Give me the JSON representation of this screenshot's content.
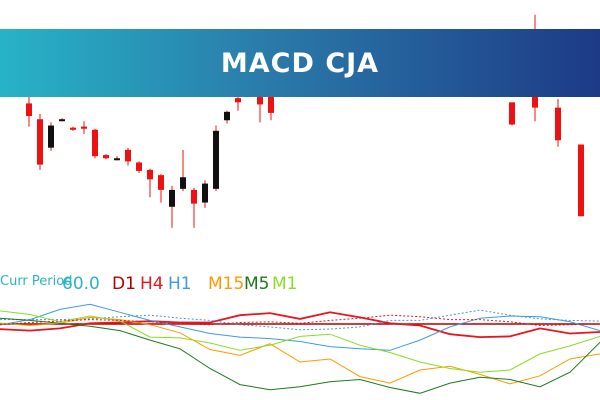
{
  "banner": {
    "title": "MACD CJA"
  },
  "legend": {
    "curr_label": "Curr Period",
    "curr_value": "60.0",
    "timeframes": [
      {
        "label": "D1",
        "color": "#b30000"
      },
      {
        "label": "H4",
        "color": "#e8141e"
      },
      {
        "label": "H1",
        "color": "#3c9be3"
      },
      {
        "label": "M15",
        "color": "#ff9900"
      },
      {
        "label": "M5",
        "color": "#1a7a1a"
      },
      {
        "label": "M1",
        "color": "#88dd22"
      }
    ]
  },
  "colors": {
    "bull": "#111111",
    "bear": "#ee1111",
    "doji": "#33bb33",
    "wick": "#ee1111",
    "zero_line": "#b30000"
  },
  "chart_data": [
    {
      "type": "candlestick",
      "ylim": [
        1082,
        1300
      ],
      "grid": false,
      "candles": [
        {
          "o": 1202,
          "h": 1210,
          "l": 1180,
          "c": 1190
        },
        {
          "o": 1187,
          "h": 1192,
          "l": 1139,
          "c": 1144
        },
        {
          "o": 1160,
          "h": 1184,
          "l": 1157,
          "c": 1181
        },
        {
          "o": 1187,
          "h": 1188,
          "l": 1185,
          "c": 1186
        },
        {
          "o": 1179,
          "h": 1180,
          "l": 1176,
          "c": 1177
        },
        {
          "o": 1180,
          "h": 1185,
          "l": 1173,
          "c": 1178
        },
        {
          "o": 1177,
          "h": 1178,
          "l": 1150,
          "c": 1152
        },
        {
          "o": 1153,
          "h": 1154,
          "l": 1149,
          "c": 1150
        },
        {
          "o": 1150,
          "h": 1152,
          "l": 1148,
          "c": 1149
        },
        {
          "o": 1158,
          "h": 1160,
          "l": 1143,
          "c": 1147
        },
        {
          "o": 1146,
          "h": 1147,
          "l": 1136,
          "c": 1138
        },
        {
          "o": 1139,
          "h": 1140,
          "l": 1113,
          "c": 1130
        },
        {
          "o": 1134,
          "h": 1135,
          "l": 1108,
          "c": 1120
        },
        {
          "o": 1104,
          "h": 1124,
          "l": 1084,
          "c": 1120
        },
        {
          "o": 1121,
          "h": 1158,
          "l": 1119,
          "c": 1132
        },
        {
          "o": 1120,
          "h": 1122,
          "l": 1084,
          "c": 1107
        },
        {
          "o": 1108,
          "h": 1129,
          "l": 1103,
          "c": 1126
        },
        {
          "o": 1121,
          "h": 1181,
          "l": 1119,
          "c": 1176
        },
        {
          "o": 1186,
          "h": 1195,
          "l": 1183,
          "c": 1194
        },
        {
          "o": 1207,
          "h": 1209,
          "l": 1195,
          "c": 1203
        },
        {
          "o": 1213,
          "h": 1262,
          "l": 1210,
          "c": 1250
        },
        {
          "o": 1223,
          "h": 1245,
          "l": 1184,
          "c": 1201
        },
        {
          "o": 1228,
          "h": 1235,
          "l": 1186,
          "c": 1193
        },
        {
          "o": 1203,
          "h": 1203,
          "l": 1181,
          "c": 1182
        },
        {
          "o": 1212,
          "h": 1286,
          "l": 1185,
          "c": 1198
        },
        {
          "o": 1198,
          "h": 1206,
          "l": 1161,
          "c": 1167
        },
        {
          "o": 1163,
          "h": 1163,
          "l": 1095,
          "c": 1095
        }
      ]
    },
    {
      "type": "line",
      "name": "macd-multi-timeframe",
      "ylim": [
        -10,
        10
      ],
      "zero_line": 0,
      "x": [
        0,
        30,
        60,
        90,
        120,
        150,
        180,
        210,
        240,
        270,
        300,
        330,
        360,
        390,
        420,
        450,
        480,
        510,
        540,
        570,
        600
      ],
      "series": [
        {
          "name": "D1",
          "color": "#b30000",
          "style": "solid",
          "values": [
            0,
            0,
            0,
            0,
            0,
            0,
            0,
            0,
            0,
            0,
            0,
            0,
            0,
            0,
            0,
            0,
            0,
            0,
            0,
            0,
            0
          ]
        },
        {
          "name": "H4",
          "color": "#e8141e",
          "style": "solid",
          "values": [
            -0.7,
            -0.9,
            -0.6,
            0.1,
            0.2,
            0.4,
            0.2,
            0.2,
            1.2,
            1.5,
            0.7,
            1.6,
            0.9,
            0.1,
            -0.2,
            -1.4,
            -1.8,
            -1.7,
            -0.6,
            -1.3,
            -1.1
          ]
        },
        {
          "name": "H1",
          "color": "#3c9be3",
          "style": "solid",
          "values": [
            -0.1,
            0.6,
            2.0,
            2.7,
            1.6,
            0.5,
            -0.4,
            -1.3,
            -1.8,
            -2.0,
            -2.4,
            -3.1,
            -3.4,
            -3.6,
            -2.2,
            -0.4,
            0.8,
            1.1,
            1.0,
            0.3,
            -0.9
          ]
        },
        {
          "name": "H1 signal",
          "color": "#3c9be3",
          "style": "dotted",
          "values": [
            0.6,
            0.6,
            0.6,
            0.7,
            1.0,
            1.2,
            0.8,
            0.5,
            -0.1,
            -0.4,
            -0.8,
            -0.7,
            -0.4,
            0.5,
            0.5,
            1.2,
            1.9,
            1.2,
            0.7,
            0.5,
            0.4
          ]
        },
        {
          "name": "M15",
          "color": "#ff9900",
          "style": "solid",
          "values": [
            0.1,
            -0.2,
            0.1,
            0.9,
            0.6,
            -0.1,
            -1.2,
            -3.5,
            -4.3,
            -2.7,
            -5.2,
            -4.8,
            -7.2,
            -8.1,
            -6.3,
            -5.8,
            -6.9,
            -8.2,
            -7.1,
            -4.8,
            -4.1
          ]
        },
        {
          "name": "M5",
          "color": "#1a7a1a",
          "style": "solid",
          "values": [
            0.8,
            0.5,
            0.1,
            -0.3,
            -0.9,
            -2.2,
            -3.4,
            -6.1,
            -8.3,
            -9.0,
            -8.6,
            -7.9,
            -7.6,
            -8.7,
            -9.5,
            -8.1,
            -7.3,
            -7.6,
            -8.6,
            -6.6,
            -2.5
          ]
        },
        {
          "name": "M1",
          "color": "#88dd22",
          "style": "solid",
          "values": [
            1.8,
            1.3,
            0.3,
            1.1,
            0.4,
            -1.8,
            -1.9,
            -2.6,
            -3.6,
            -2.9,
            -1.7,
            -1.4,
            -2.9,
            -3.9,
            -5.2,
            -6.1,
            -6.6,
            -6.3,
            -4.1,
            -3.0,
            -1.7
          ]
        },
        {
          "name": "signal",
          "color": "#e8141e",
          "style": "dotted",
          "values": [
            -0.1,
            0.2,
            0.4,
            0.6,
            0.5,
            0.3,
            0.0,
            -0.1,
            0.2,
            0.3,
            0.1,
            0.5,
            0.8,
            1.2,
            1.0,
            0.6,
            0.6,
            0.3,
            -0.2,
            -0.1,
            0.0
          ]
        }
      ]
    }
  ]
}
